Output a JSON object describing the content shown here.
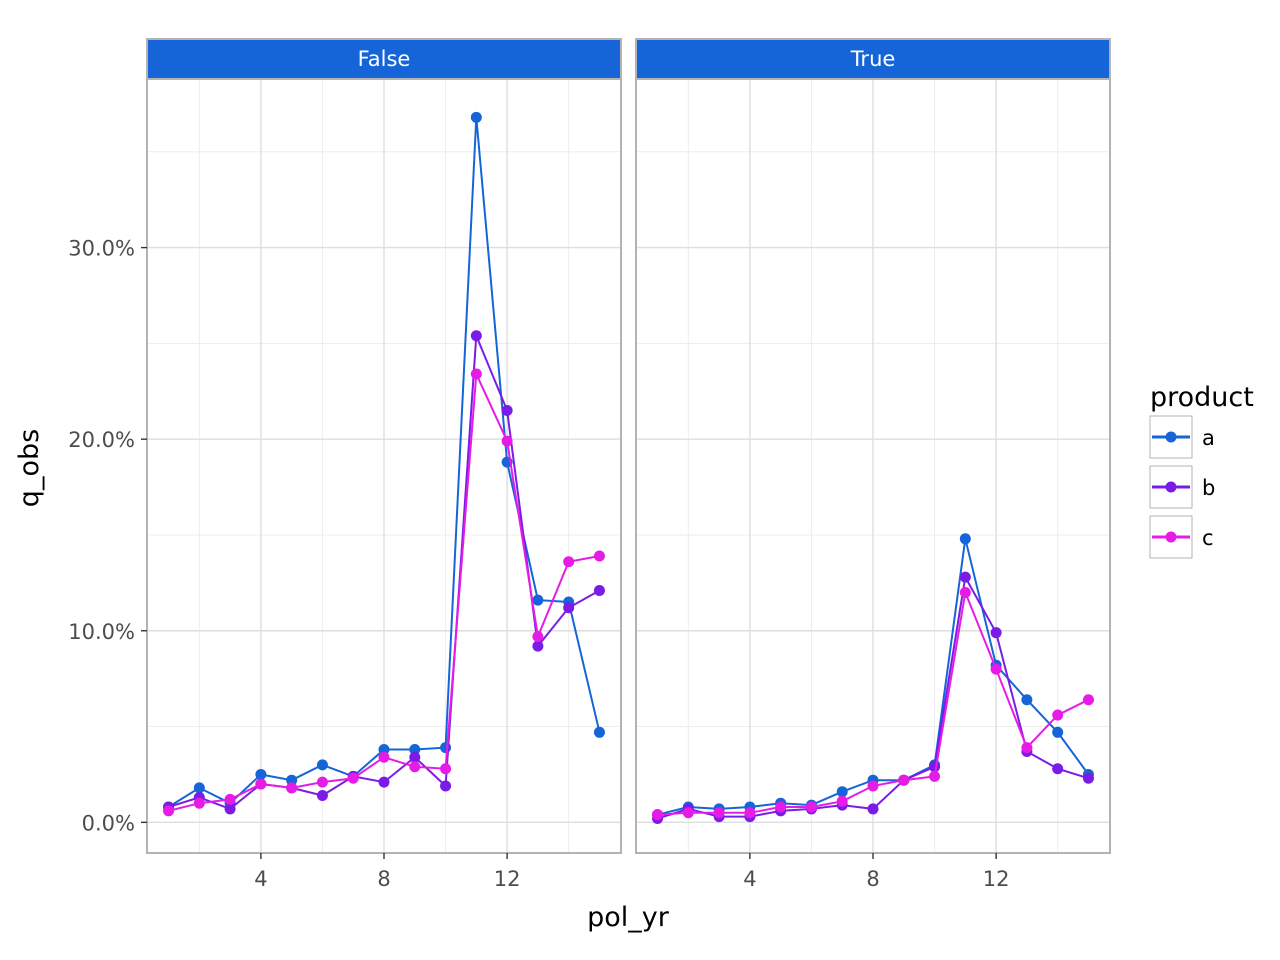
{
  "chart_data": {
    "type": "line",
    "xlabel": "pol_yr",
    "ylabel": "q_obs",
    "x_ticks": [
      4,
      8,
      12
    ],
    "y_ticks": [
      0,
      10,
      20,
      30
    ],
    "y_tick_labels": [
      "0.0%",
      "10.0%",
      "20.0%",
      "30.0%"
    ],
    "xlim": [
      0.3,
      15.7
    ],
    "ylim": [
      -1.6,
      38.8
    ],
    "grid": true,
    "legend": {
      "title": "product",
      "position": "right",
      "entries": [
        "a",
        "b",
        "c"
      ]
    },
    "colors": {
      "a": "#1565d8",
      "b": "#7b1ce6",
      "c": "#e61ce6",
      "strip": "#1565d8"
    },
    "facets": [
      {
        "label": "False",
        "series": [
          {
            "name": "a",
            "x": [
              1,
              2,
              3,
              4,
              5,
              6,
              7,
              8,
              9,
              10,
              11,
              12,
              13,
              14,
              15
            ],
            "values": [
              0.8,
              1.8,
              1.0,
              2.5,
              2.2,
              3.0,
              2.4,
              3.8,
              3.8,
              3.9,
              36.8,
              18.8,
              11.6,
              11.5,
              4.7
            ]
          },
          {
            "name": "b",
            "x": [
              1,
              2,
              3,
              4,
              5,
              6,
              7,
              8,
              9,
              10,
              11,
              12,
              13,
              14,
              15
            ],
            "values": [
              0.8,
              1.3,
              0.7,
              2.0,
              1.8,
              1.4,
              2.4,
              2.1,
              3.4,
              1.9,
              25.4,
              21.5,
              9.2,
              11.2,
              12.1
            ]
          },
          {
            "name": "c",
            "x": [
              1,
              2,
              3,
              4,
              5,
              6,
              7,
              8,
              9,
              10,
              11,
              12,
              13,
              14,
              15
            ],
            "values": [
              0.6,
              1.0,
              1.2,
              2.0,
              1.8,
              2.1,
              2.3,
              3.4,
              2.9,
              2.8,
              23.4,
              19.9,
              9.7,
              13.6,
              13.9
            ]
          }
        ]
      },
      {
        "label": "True",
        "series": [
          {
            "name": "a",
            "x": [
              1,
              2,
              3,
              4,
              5,
              6,
              7,
              8,
              9,
              10,
              11,
              12,
              13,
              14,
              15
            ],
            "values": [
              0.4,
              0.8,
              0.7,
              0.8,
              1.0,
              0.9,
              1.6,
              2.2,
              2.2,
              3.0,
              14.8,
              8.2,
              6.4,
              4.7,
              2.5
            ]
          },
          {
            "name": "b",
            "x": [
              1,
              2,
              3,
              4,
              5,
              6,
              7,
              8,
              9,
              10,
              11,
              12,
              13,
              14,
              15
            ],
            "values": [
              0.2,
              0.7,
              0.3,
              0.3,
              0.6,
              0.7,
              0.9,
              0.7,
              2.2,
              2.9,
              12.8,
              9.9,
              3.7,
              2.8,
              2.3
            ]
          },
          {
            "name": "c",
            "x": [
              1,
              2,
              3,
              4,
              5,
              6,
              7,
              8,
              9,
              10,
              11,
              12,
              13,
              14,
              15
            ],
            "values": [
              0.4,
              0.5,
              0.5,
              0.5,
              0.8,
              0.8,
              1.1,
              1.9,
              2.2,
              2.4,
              12.0,
              8.0,
              3.9,
              5.6,
              6.4
            ]
          }
        ]
      }
    ]
  }
}
